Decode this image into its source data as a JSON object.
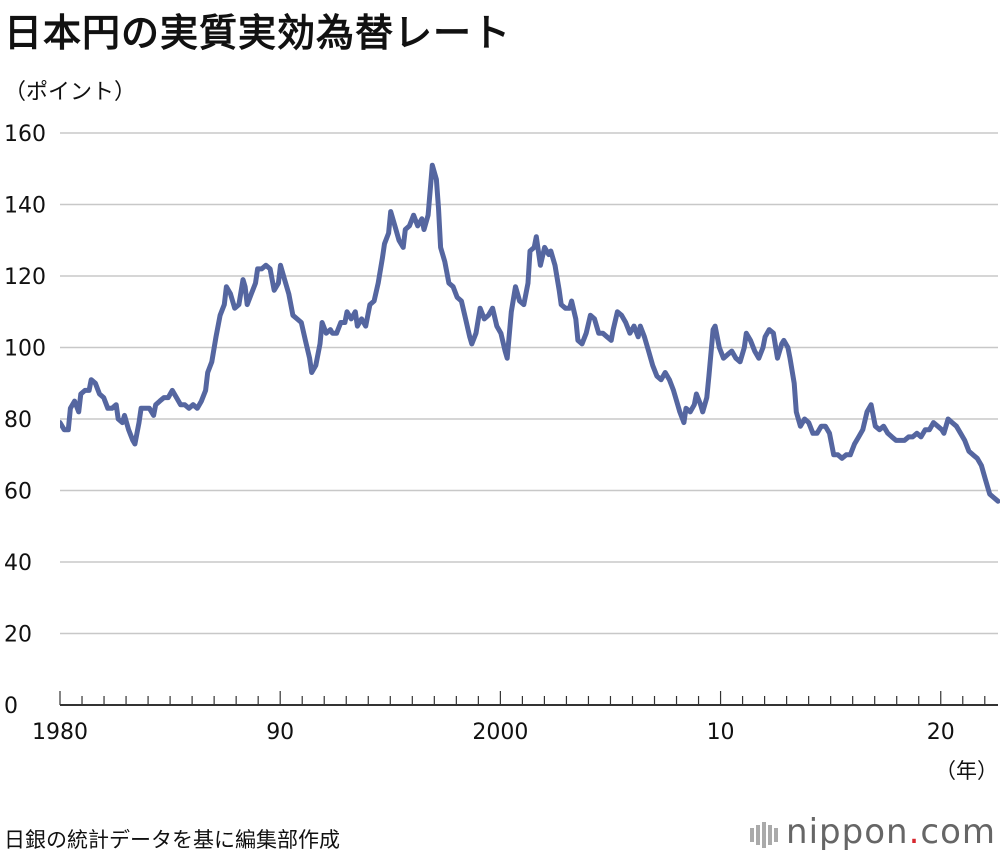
{
  "title": "日本円の実質実効為替レート",
  "unit_label": "（ポイント）",
  "source": "日銀の統計データを基に編集部作成",
  "brand": {
    "name": "nippon",
    "dot": ".",
    "tld": "com"
  },
  "colors": {
    "line": "#5566a0",
    "grid": "#c8c8c8",
    "axis": "#333333"
  },
  "chart_data": {
    "type": "line",
    "title": "日本円の実質実効為替レート",
    "ylabel": "（ポイント）",
    "xlabel": "（年）",
    "xlim": [
      1980,
      2022.6
    ],
    "ylim": [
      0,
      160
    ],
    "yticks": [
      0,
      20,
      40,
      60,
      80,
      100,
      120,
      140,
      160
    ],
    "xticks": [
      {
        "value": 1980,
        "label": "1980"
      },
      {
        "value": 1990,
        "label": "90"
      },
      {
        "value": 2000,
        "label": "2000"
      },
      {
        "value": 2010,
        "label": "10"
      },
      {
        "value": 2020,
        "label": "20"
      }
    ],
    "grid": true,
    "series": [
      {
        "points": [
          [
            1980.0,
            79
          ],
          [
            1980.2,
            77
          ],
          [
            1980.4,
            77
          ],
          [
            1980.5,
            83
          ],
          [
            1980.7,
            85
          ],
          [
            1980.9,
            82
          ],
          [
            1981.0,
            87
          ],
          [
            1981.2,
            88
          ],
          [
            1981.4,
            88
          ],
          [
            1981.5,
            91
          ],
          [
            1981.7,
            90
          ],
          [
            1981.9,
            87
          ],
          [
            1982.1,
            86
          ],
          [
            1982.3,
            83
          ],
          [
            1982.5,
            83
          ],
          [
            1982.7,
            84
          ],
          [
            1982.8,
            80
          ],
          [
            1983.0,
            79
          ],
          [
            1983.1,
            81
          ],
          [
            1983.3,
            77
          ],
          [
            1983.5,
            74
          ],
          [
            1983.6,
            73
          ],
          [
            1983.8,
            79
          ],
          [
            1983.9,
            83
          ],
          [
            1984.1,
            83
          ],
          [
            1984.3,
            83
          ],
          [
            1984.5,
            81
          ],
          [
            1984.6,
            84
          ],
          [
            1984.8,
            85
          ],
          [
            1985.0,
            86
          ],
          [
            1985.2,
            86
          ],
          [
            1985.4,
            88
          ],
          [
            1985.6,
            86
          ],
          [
            1985.8,
            84
          ],
          [
            1986.0,
            84
          ],
          [
            1986.2,
            83
          ],
          [
            1986.4,
            84
          ],
          [
            1986.6,
            83
          ],
          [
            1986.8,
            85
          ],
          [
            1987.0,
            88
          ],
          [
            1987.1,
            93
          ],
          [
            1987.3,
            96
          ],
          [
            1987.5,
            103
          ],
          [
            1987.7,
            109
          ],
          [
            1987.9,
            112
          ],
          [
            1988.0,
            117
          ],
          [
            1988.2,
            115
          ],
          [
            1988.4,
            111
          ],
          [
            1988.6,
            112
          ],
          [
            1988.8,
            119
          ],
          [
            1988.9,
            117
          ],
          [
            1989.0,
            112
          ],
          [
            1989.2,
            115
          ],
          [
            1989.4,
            118
          ],
          [
            1989.5,
            122
          ],
          [
            1989.7,
            122
          ],
          [
            1989.9,
            123
          ],
          [
            1990.1,
            122
          ],
          [
            1990.3,
            116
          ],
          [
            1990.5,
            118
          ],
          [
            1990.6,
            123
          ],
          [
            1990.8,
            119
          ],
          [
            1991.0,
            115
          ],
          [
            1991.2,
            109
          ],
          [
            1991.4,
            108
          ],
          [
            1991.6,
            107
          ],
          [
            1991.8,
            102
          ],
          [
            1992.0,
            97
          ],
          [
            1992.1,
            93
          ],
          [
            1992.3,
            95
          ],
          [
            1992.5,
            101
          ],
          [
            1992.6,
            107
          ],
          [
            1992.8,
            104
          ],
          [
            1993.0,
            105
          ],
          [
            1993.1,
            104
          ],
          [
            1993.3,
            104
          ],
          [
            1993.5,
            107
          ],
          [
            1993.7,
            107
          ],
          [
            1993.8,
            110
          ],
          [
            1994.0,
            108
          ],
          [
            1994.2,
            110
          ],
          [
            1994.3,
            106
          ],
          [
            1994.5,
            108
          ],
          [
            1994.7,
            106
          ],
          [
            1994.9,
            112
          ],
          [
            1995.1,
            113
          ],
          [
            1995.3,
            118
          ],
          [
            1995.5,
            125
          ],
          [
            1995.6,
            129
          ],
          [
            1995.8,
            132
          ],
          [
            1995.9,
            138
          ],
          [
            1996.1,
            134
          ],
          [
            1996.3,
            130
          ],
          [
            1996.5,
            128
          ],
          [
            1996.6,
            133
          ],
          [
            1996.8,
            134
          ],
          [
            1997.0,
            137
          ],
          [
            1997.2,
            134
          ],
          [
            1997.4,
            136
          ],
          [
            1997.5,
            133
          ],
          [
            1997.7,
            137
          ],
          [
            1997.9,
            151
          ],
          [
            1998.1,
            147
          ],
          [
            1998.2,
            139
          ],
          [
            1998.3,
            128
          ],
          [
            1998.5,
            124
          ],
          [
            1998.7,
            118
          ],
          [
            1998.9,
            117
          ],
          [
            1999.1,
            114
          ],
          [
            1999.3,
            113
          ],
          [
            1999.5,
            108
          ],
          [
            1999.7,
            103
          ],
          [
            1999.8,
            101
          ],
          [
            2000.0,
            104
          ],
          [
            2000.2,
            111
          ],
          [
            2000.4,
            108
          ],
          [
            2000.6,
            109
          ],
          [
            2000.8,
            111
          ],
          [
            2001.0,
            106
          ],
          [
            2001.2,
            104
          ],
          [
            2001.4,
            99
          ],
          [
            2001.5,
            97
          ],
          [
            2001.7,
            110
          ],
          [
            2001.9,
            117
          ],
          [
            2002.1,
            113
          ],
          [
            2002.3,
            112
          ],
          [
            2002.5,
            118
          ],
          [
            2002.6,
            127
          ],
          [
            2002.8,
            128
          ],
          [
            2002.9,
            131
          ],
          [
            2003.1,
            123
          ],
          [
            2003.3,
            128
          ],
          [
            2003.5,
            126
          ],
          [
            2003.6,
            127
          ],
          [
            2003.8,
            123
          ],
          [
            2004.0,
            116
          ],
          [
            2004.1,
            112
          ],
          [
            2004.3,
            111
          ],
          [
            2004.5,
            111
          ],
          [
            2004.6,
            113
          ],
          [
            2004.8,
            108
          ],
          [
            2004.9,
            102
          ],
          [
            2005.1,
            101
          ],
          [
            2005.3,
            104
          ],
          [
            2005.5,
            109
          ],
          [
            2005.7,
            108
          ],
          [
            2005.9,
            104
          ],
          [
            2006.1,
            104
          ],
          [
            2006.3,
            103
          ],
          [
            2006.5,
            102
          ],
          [
            2006.6,
            105
          ],
          [
            2006.8,
            110
          ],
          [
            2007.0,
            109
          ],
          [
            2007.2,
            107
          ],
          [
            2007.4,
            104
          ],
          [
            2007.6,
            106
          ],
          [
            2007.8,
            103
          ],
          [
            2007.9,
            106
          ],
          [
            2008.1,
            103
          ],
          [
            2008.3,
            99
          ],
          [
            2008.5,
            95
          ],
          [
            2008.7,
            92
          ],
          [
            2008.9,
            91
          ],
          [
            2009.1,
            93
          ],
          [
            2009.3,
            91
          ],
          [
            2009.5,
            88
          ],
          [
            2009.7,
            84
          ],
          [
            2009.8,
            82
          ],
          [
            2010.0,
            79
          ],
          [
            2010.1,
            83
          ],
          [
            2010.3,
            82
          ],
          [
            2010.5,
            84
          ],
          [
            2010.6,
            87
          ],
          [
            2010.8,
            84
          ],
          [
            2010.9,
            82
          ],
          [
            2011.1,
            86
          ],
          [
            2011.2,
            92
          ],
          [
            2011.4,
            105
          ],
          [
            2011.5,
            106
          ],
          [
            2011.7,
            100
          ],
          [
            2011.9,
            97
          ],
          [
            2012.1,
            98
          ],
          [
            2012.3,
            99
          ],
          [
            2012.5,
            97
          ],
          [
            2012.7,
            96
          ],
          [
            2012.9,
            100
          ],
          [
            2013.0,
            104
          ],
          [
            2013.2,
            102
          ],
          [
            2013.4,
            99
          ],
          [
            2013.6,
            97
          ],
          [
            2013.8,
            100
          ],
          [
            2013.9,
            103
          ],
          [
            2014.1,
            105
          ],
          [
            2014.3,
            104
          ],
          [
            2014.5,
            97
          ],
          [
            2014.7,
            101
          ],
          [
            2014.8,
            102
          ],
          [
            2015.0,
            100
          ],
          [
            2015.1,
            97
          ],
          [
            2015.3,
            90
          ],
          [
            2015.4,
            82
          ],
          [
            2015.6,
            78
          ],
          [
            2015.8,
            80
          ],
          [
            2016.0,
            79
          ],
          [
            2016.2,
            76
          ],
          [
            2016.4,
            76
          ],
          [
            2016.6,
            78
          ],
          [
            2016.8,
            78
          ],
          [
            2017.0,
            76
          ],
          [
            2017.2,
            70
          ],
          [
            2017.4,
            70
          ],
          [
            2017.6,
            69
          ],
          [
            2017.8,
            70
          ],
          [
            2018.0,
            70
          ],
          [
            2018.2,
            73
          ],
          [
            2018.4,
            75
          ],
          [
            2018.6,
            77
          ],
          [
            2018.8,
            82
          ],
          [
            2019.0,
            84
          ],
          [
            2019.2,
            78
          ],
          [
            2019.4,
            77
          ],
          [
            2019.6,
            78
          ],
          [
            2019.8,
            76
          ],
          [
            2020.0,
            75
          ],
          [
            2020.2,
            74
          ],
          [
            2020.4,
            74
          ],
          [
            2020.6,
            74
          ],
          [
            2020.8,
            75
          ],
          [
            2021.0,
            75
          ],
          [
            2021.2,
            76
          ],
          [
            2021.4,
            75
          ],
          [
            2021.6,
            77
          ],
          [
            2021.8,
            77
          ],
          [
            2022.0,
            79
          ],
          [
            2022.2,
            78
          ],
          [
            2022.4,
            77
          ],
          [
            2022.5,
            76
          ],
          [
            2022.7,
            80
          ],
          [
            2022.9,
            79
          ],
          [
            2023.1,
            78
          ],
          [
            2023.3,
            76
          ],
          [
            2023.5,
            74
          ],
          [
            2023.7,
            71
          ],
          [
            2023.9,
            70
          ],
          [
            2024.1,
            69
          ],
          [
            2024.3,
            67
          ],
          [
            2024.5,
            63
          ],
          [
            2024.7,
            59
          ],
          [
            2024.9,
            58
          ],
          [
            2025.1,
            57
          ]
        ]
      }
    ]
  }
}
